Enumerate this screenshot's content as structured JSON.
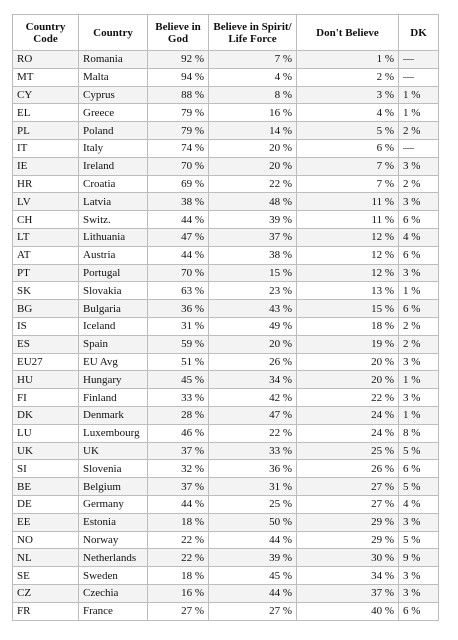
{
  "table": {
    "header": [
      "Country Code",
      "Country",
      "Believe in God",
      "Believe in Spirit/ Life Force",
      "Don't Believe",
      "DK"
    ],
    "rows": [
      [
        "RO",
        "Romania",
        "92 %",
        "7 %",
        "1 %",
        "—"
      ],
      [
        "MT",
        "Malta",
        "94 %",
        "4 %",
        "2 %",
        "—"
      ],
      [
        "CY",
        "Cyprus",
        "88 %",
        "8 %",
        "3 %",
        "1 %"
      ],
      [
        "EL",
        "Greece",
        "79 %",
        "16 %",
        "4 %",
        "1 %"
      ],
      [
        "PL",
        "Poland",
        "79 %",
        "14 %",
        "5 %",
        "2 %"
      ],
      [
        "IT",
        "Italy",
        "74 %",
        "20 %",
        "6 %",
        "—"
      ],
      [
        "IE",
        "Ireland",
        "70 %",
        "20 %",
        "7 %",
        "3 %"
      ],
      [
        "HR",
        "Croatia",
        "69 %",
        "22 %",
        "7 %",
        "2 %"
      ],
      [
        "LV",
        "Latvia",
        "38 %",
        "48 %",
        "11 %",
        "3 %"
      ],
      [
        "CH",
        "Switz.",
        "44 %",
        "39 %",
        "11 %",
        "6 %"
      ],
      [
        "LT",
        "Lithuania",
        "47 %",
        "37 %",
        "12 %",
        "4 %"
      ],
      [
        "AT",
        "Austria",
        "44 %",
        "38 %",
        "12 %",
        "6 %"
      ],
      [
        "PT",
        "Portugal",
        "70 %",
        "15 %",
        "12 %",
        "3 %"
      ],
      [
        "SK",
        "Slovakia",
        "63 %",
        "23 %",
        "13 %",
        "1 %"
      ],
      [
        "BG",
        "Bulgaria",
        "36 %",
        "43 %",
        "15 %",
        "6 %"
      ],
      [
        "IS",
        "Iceland",
        "31 %",
        "49 %",
        "18 %",
        "2 %"
      ],
      [
        "ES",
        "Spain",
        "59 %",
        "20 %",
        "19 %",
        "2 %"
      ],
      [
        "EU27",
        "EU Avg",
        "51 %",
        "26 %",
        "20 %",
        "3 %"
      ],
      [
        "HU",
        "Hungary",
        "45 %",
        "34 %",
        "20 %",
        "1 %"
      ],
      [
        "FI",
        "Finland",
        "33 %",
        "42 %",
        "22 %",
        "3 %"
      ],
      [
        "DK",
        "Denmark",
        "28 %",
        "47 %",
        "24 %",
        "1 %"
      ],
      [
        "LU",
        "Luxembourg",
        "46 %",
        "22 %",
        "24 %",
        "8 %"
      ],
      [
        "UK",
        "UK",
        "37 %",
        "33 %",
        "25 %",
        "5 %"
      ],
      [
        "SI",
        "Slovenia",
        "32 %",
        "36 %",
        "26 %",
        "6 %"
      ],
      [
        "BE",
        "Belgium",
        "37 %",
        "31 %",
        "27 %",
        "5 %"
      ],
      [
        "DE",
        "Germany",
        "44 %",
        "25 %",
        "27 %",
        "4 %"
      ],
      [
        "EE",
        "Estonia",
        "18 %",
        "50 %",
        "29 %",
        "3 %"
      ],
      [
        "NO",
        "Norway",
        "22 %",
        "44 %",
        "29 %",
        "5 %"
      ],
      [
        "NL",
        "Netherlands",
        "22 %",
        "39 %",
        "30 %",
        "9 %"
      ],
      [
        "SE",
        "Sweden",
        "18 %",
        "45 %",
        "34 %",
        "3 %"
      ],
      [
        "CZ",
        "Czechia",
        "16 %",
        "44 %",
        "37 %",
        "3 %"
      ],
      [
        "FR",
        "France",
        "27 %",
        "27 %",
        "40 %",
        "6 %"
      ]
    ]
  }
}
